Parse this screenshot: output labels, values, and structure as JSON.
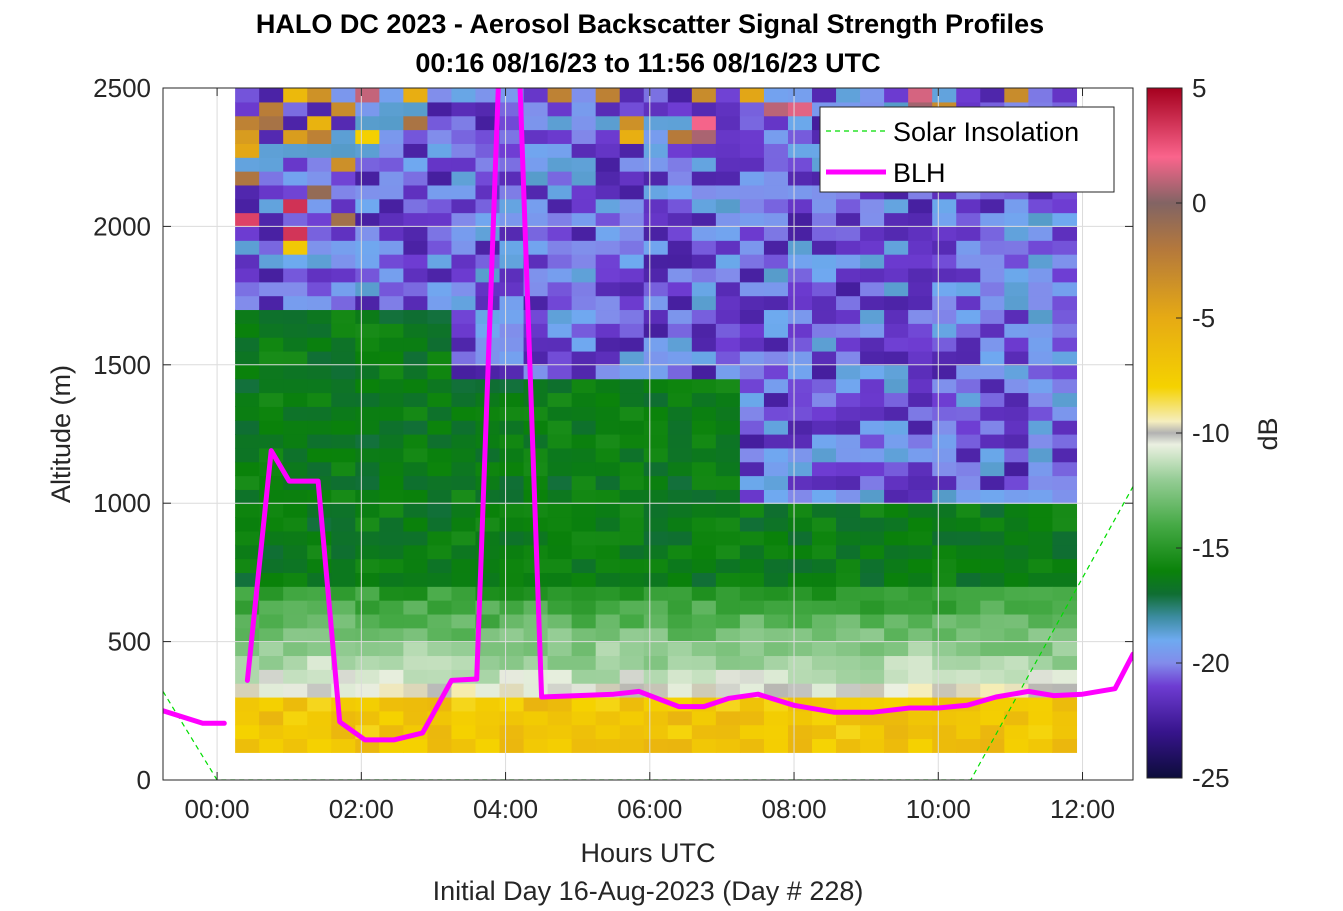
{
  "chart_data": {
    "type": "heatmap",
    "title": "HALO DC 2023 - Aerosol Backscatter Signal Strength Profiles",
    "subtitle": "00:16 08/16/23 to 11:56 08/16/23  UTC",
    "xlabel": "Hours UTC",
    "footer": "Initial Day 16-Aug-2023 (Day # 228)",
    "ylabel": "Altitude (m)",
    "xlim": [
      -0.75,
      12.7
    ],
    "ylim": [
      0,
      2500
    ],
    "x_ticks": [
      0,
      2,
      4,
      6,
      8,
      10,
      12
    ],
    "x_tick_labels": [
      "00:00",
      "02:00",
      "04:00",
      "06:00",
      "08:00",
      "10:00",
      "12:00"
    ],
    "y_ticks": [
      0,
      500,
      1000,
      1500,
      2000,
      2500
    ],
    "y_tick_labels": [
      "0",
      "500",
      "1000",
      "1500",
      "2000",
      "2500"
    ],
    "grid": true,
    "legend_position": "top-right",
    "colorbar": {
      "label": "dB",
      "range": [
        -25,
        5
      ],
      "ticks": [
        5,
        0,
        -5,
        -10,
        -15,
        -20,
        -25
      ],
      "tick_labels": [
        "5",
        "0",
        "-5",
        "-10",
        "-15",
        "-20",
        "-25"
      ]
    },
    "heatmap_grid": {
      "x_start": 0.25,
      "x_step": 0.3333,
      "columns": 35,
      "y_start": 100,
      "y_step": 50,
      "rows": 48
    },
    "series": [
      {
        "name": "Solar Insolation",
        "style": "dashed",
        "color": "#00dd00",
        "x": [
          -0.75,
          0.0,
          10.45,
          12.7
        ],
        "y": [
          320,
          0,
          0,
          1060
        ]
      },
      {
        "name": "BLH",
        "style": "solid",
        "color": "#ff00ff",
        "segments": [
          {
            "x": [
              -0.75,
              -0.2,
              0.1
            ],
            "y": [
              250,
              205,
              205
            ]
          },
          {
            "x": [
              0.42,
              0.75,
              1.0,
              1.4,
              1.7,
              2.05,
              2.45,
              2.85,
              3.25,
              3.6,
              3.9,
              4.1,
              4.2,
              4.5,
              5.0,
              5.5,
              5.85,
              6.4,
              6.75,
              7.1,
              7.5,
              8.0,
              8.55,
              9.1,
              9.6,
              10.0,
              10.4,
              10.8,
              11.25,
              11.6,
              12.0,
              12.45,
              12.7
            ],
            "y": [
              360,
              1190,
              1080,
              1080,
              210,
              145,
              145,
              170,
              360,
              365,
              2510,
              2510,
              2510,
              300,
              305,
              310,
              320,
              265,
              265,
              295,
              310,
              270,
              245,
              245,
              260,
              260,
              270,
              300,
              320,
              305,
              310,
              330,
              455
            ]
          }
        ]
      }
    ]
  }
}
